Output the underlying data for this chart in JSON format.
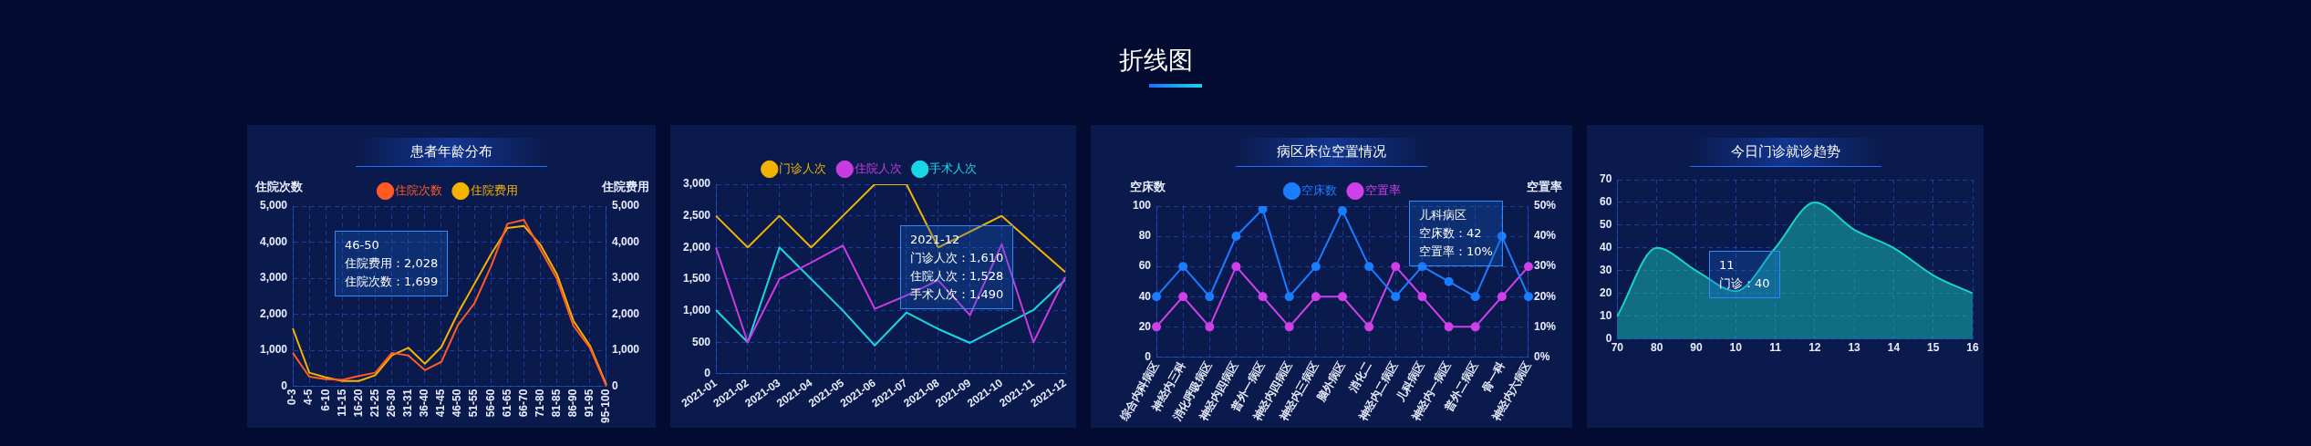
{
  "chart_data": [
    {
      "type": "other",
      "title": "折线图"
    },
    {
      "type": "line",
      "title": "患者年龄分布",
      "ylabel": "住院次数",
      "y2label": "住院费用",
      "legend": "top",
      "grid": true,
      "marker": "none",
      "categories": [
        "0-3",
        "4-5",
        "6-10",
        "11-15",
        "16-20",
        "21-25",
        "26-30",
        "31-31",
        "36-40",
        "41-45",
        "46-50",
        "51-55",
        "56-60",
        "61-65",
        "66-70",
        "71-80",
        "81-85",
        "86-90",
        "91-95",
        "95-100"
      ],
      "series": [
        {
          "name": "住院次数",
          "color": "#ff5a24",
          "values": [
            930,
            270,
            200,
            180,
            290,
            380,
            930,
            860,
            450,
            680,
            1699,
            2300,
            3320,
            4510,
            4620,
            3800,
            2980,
            1680,
            1070,
            0
          ]
        },
        {
          "name": "住院费用",
          "color": "#f5b300",
          "axis": "y2",
          "values": [
            1610,
            380,
            250,
            150,
            150,
            310,
            860,
            1070,
            630,
            1090,
            2028,
            2840,
            3660,
            4390,
            4450,
            3930,
            3110,
            1820,
            1130,
            40
          ]
        }
      ],
      "ylim": [
        0,
        5000
      ],
      "yticks": [
        0,
        {
          "value": 1000,
          "label": "1,000"
        },
        {
          "value": 2000,
          "label": "2,000"
        },
        {
          "value": 3000,
          "label": "3,000"
        },
        {
          "value": 4000,
          "label": "4,000"
        },
        {
          "value": 5000,
          "label": "5,000"
        }
      ],
      "y2lim": [
        0,
        5000
      ],
      "y2ticks": [
        0,
        {
          "value": 1000,
          "label": "1,000"
        },
        {
          "value": 2000,
          "label": "2,000"
        },
        {
          "value": 3000,
          "label": "3,000"
        },
        {
          "value": 4000,
          "label": "4,000"
        },
        {
          "value": 5000,
          "label": "5,000"
        }
      ],
      "annotations": [
        "46-50",
        "住院费用：2,028",
        "住院次数：1,699"
      ]
    },
    {
      "type": "line",
      "legend": "top",
      "grid": true,
      "marker": "none",
      "categories": [
        "2021-01",
        "2021-02",
        "2021-03",
        "2021-04",
        "2021-05",
        "2021-06",
        "2021-07",
        "2021-08",
        "2021-09",
        "2021-10",
        "2021-11",
        "2021-12"
      ],
      "series": [
        {
          "name": "门诊人次",
          "color": "#f0b400",
          "values": [
            2500,
            2000,
            2500,
            2000,
            2500,
            3000,
            3000,
            2000,
            2250,
            2500,
            2050,
            1610
          ]
        },
        {
          "name": "住院人次",
          "color": "#c93be0",
          "values": [
            2000,
            500,
            1500,
            1760,
            2030,
            1030,
            1240,
            1480,
            930,
            2050,
            500,
            1528
          ]
        },
        {
          "name": "手术人次",
          "color": "#19d6e6",
          "values": [
            1010,
            500,
            2000,
            1500,
            1000,
            450,
            970,
            710,
            490,
            750,
            1010,
            1490
          ]
        }
      ],
      "ylim": [
        0,
        3000
      ],
      "yticks": [
        0,
        500,
        {
          "value": 1000,
          "label": "1,000"
        },
        {
          "value": 1500,
          "label": "1,500"
        },
        {
          "value": 2000,
          "label": "2,000"
        },
        {
          "value": 2500,
          "label": "2,500"
        },
        {
          "value": 3000,
          "label": "3,000"
        }
      ],
      "annotations": [
        "2021-12",
        "门诊人次：1,610",
        "住院人次：1,528",
        "手术人次：1,490"
      ]
    },
    {
      "type": "line",
      "title": "病区床位空置情况",
      "ylabel": "空床数",
      "y2label": "空置率",
      "legend": "top",
      "grid": true,
      "marker": "circle",
      "categories": [
        "综合内科病区",
        "神经内三科",
        "消化呼吸病区",
        "神经内四病区",
        "普外一病区",
        "神经内四病区",
        "神经内三病区",
        "脑外病区",
        "消化二",
        "神经内二病区",
        "儿科病区",
        "神经内一病区",
        "普外二病区",
        "骨一科",
        "神经内六病区"
      ],
      "series": [
        {
          "name": "空床数",
          "color": "#1a7cff",
          "values": [
            40,
            60,
            40,
            80,
            98,
            40,
            60,
            97,
            60,
            40,
            60,
            50,
            40,
            80,
            40
          ]
        },
        {
          "name": "空置率",
          "color": "#d040e8",
          "axis": "y2",
          "values": [
            10,
            20,
            10,
            30,
            20,
            10,
            20,
            20,
            10,
            30,
            20,
            10,
            10,
            20,
            30
          ]
        }
      ],
      "ylim": [
        0,
        100
      ],
      "yticks": [
        0,
        20,
        40,
        60,
        80,
        100
      ],
      "y2lim": [
        0,
        50
      ],
      "y2ticks": [
        {
          "value": 0,
          "label": "0%"
        },
        {
          "value": 10,
          "label": "10%"
        },
        {
          "value": 20,
          "label": "20%"
        },
        {
          "value": 30,
          "label": "30%"
        },
        {
          "value": 40,
          "label": "40%"
        },
        {
          "value": 50,
          "label": "50%"
        }
      ],
      "annotations": [
        "儿科病区",
        "空床数：42",
        "空置率：10%"
      ]
    },
    {
      "type": "area",
      "title": "今日门诊就诊趋势",
      "grid": true,
      "marker": "none",
      "categories": [
        "70",
        "80",
        "90",
        "10",
        "11",
        "12",
        "13",
        "14",
        "15",
        "16"
      ],
      "series": [
        {
          "color": "#19d3c5",
          "values": [
            10,
            40,
            30,
            21,
            40,
            60,
            48,
            40,
            28,
            20
          ]
        }
      ],
      "ylim": [
        0,
        70
      ],
      "yticks": [
        0,
        10,
        20,
        30,
        40,
        50,
        60,
        70
      ],
      "annotations": [
        "11",
        "门诊：40"
      ]
    }
  ]
}
